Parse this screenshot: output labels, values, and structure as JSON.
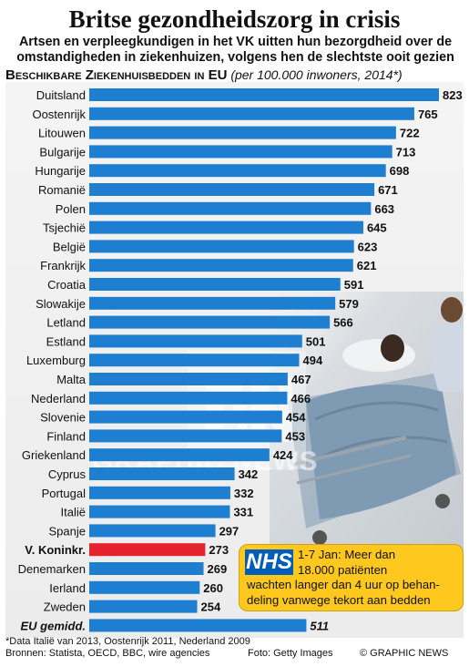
{
  "header": {
    "title": "Britse gezondheidszorg in crisis",
    "subtitle": "Artsen en verpleegkundigen in het VK uitten hun bezorgdheid over de omstandigheden in ziekenhuizen, volgens hen de slechtste ooit gezien"
  },
  "chart_heading": {
    "main": "Beschikbare Ziekenhuisbedden in EU",
    "unit": "(per 100.000 inwoners, 2014*)"
  },
  "watermark": {
    "text": "GRAPHIC NEWS"
  },
  "callout": {
    "logo": "NHS",
    "lines": [
      "1-7 Jan: Meer dan",
      "18.000 patiënten",
      "wachten langer dan 4 uur op behan-",
      "deling vanwege tekort aan bedden"
    ]
  },
  "footer": {
    "footnote": "*Data Italië van 2013, Oostenrijk 2011, Nederland 2009",
    "sources": "Bronnen: Statista, OECD, BBC, wire agencies",
    "photo_credit": "Foto: Getty Images",
    "copyright": "© GRAPHIC NEWS"
  },
  "colors": {
    "bar": "#1e7fd0",
    "highlight": "#e4232f",
    "average": "#1e7fd0",
    "callout": "#ffc81e",
    "nhs_blue": "#005eb8"
  },
  "chart_data": {
    "type": "bar",
    "orientation": "horizontal",
    "categories": [
      "Duitsland",
      "Oostenrijk",
      "Litouwen",
      "Bulgarije",
      "Hungarije",
      "Romanië",
      "Polen",
      "Tsjechië",
      "België",
      "Frankrijk",
      "Croatia",
      "Slowakije",
      "Letland",
      "Estland",
      "Luxemburg",
      "Malta",
      "Nederland",
      "Slovenie",
      "Finland",
      "Griekenland",
      "Cyprus",
      "Portugal",
      "Italië",
      "Spanje",
      "V. Koninkr.",
      "Denemarken",
      "Ierland",
      "Zweden",
      "EU gemidd."
    ],
    "values": [
      823,
      765,
      722,
      713,
      698,
      671,
      663,
      645,
      623,
      621,
      591,
      579,
      566,
      501,
      494,
      467,
      466,
      454,
      453,
      424,
      342,
      332,
      331,
      297,
      273,
      269,
      260,
      254,
      511
    ],
    "highlight": "V. Koninkr.",
    "average_label": "EU gemidd.",
    "xlim": [
      0,
      823
    ]
  }
}
